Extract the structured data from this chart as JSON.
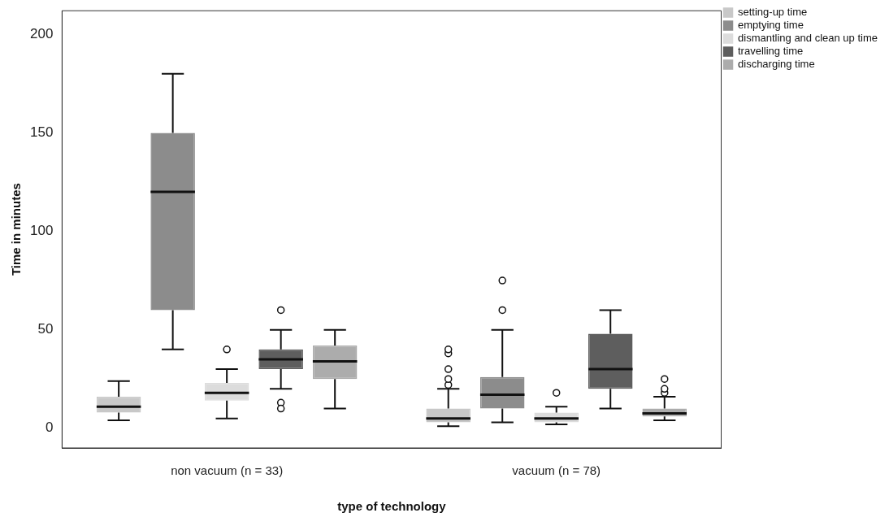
{
  "chart_data": {
    "type": "box",
    "xlabel": "type of technology",
    "ylabel": "Time in minutes",
    "categories": [
      "non vacuum (n = 33)",
      "vacuum (n = 78)"
    ],
    "ylim": [
      -10,
      212
    ],
    "yticks": [
      0,
      50,
      100,
      150,
      200
    ],
    "legend": "top right",
    "series": [
      {
        "name": "setting-up time",
        "color": "#c8c8c8",
        "boxes": [
          {
            "low": 4,
            "q1": 8,
            "median": 11,
            "q3": 16,
            "high": 24
          },
          {
            "low": 1,
            "q1": 3,
            "median": 5,
            "q3": 10,
            "high": 20,
            "outliers": [
              22,
              25,
              30,
              38,
              40
            ]
          }
        ]
      },
      {
        "name": "emptying time",
        "color": "#8c8c8c",
        "boxes": [
          {
            "low": 40,
            "q1": 60,
            "median": 120,
            "q3": 150,
            "high": 180
          },
          {
            "low": 3,
            "q1": 10,
            "median": 17,
            "q3": 26,
            "high": 50,
            "outliers": [
              60,
              75
            ]
          }
        ]
      },
      {
        "name": "dismantling and clean up time",
        "color": "#dcdcdc",
        "boxes": [
          {
            "low": 5,
            "q1": 14,
            "median": 18,
            "q3": 23,
            "high": 30,
            "outliers": [
              40
            ]
          },
          {
            "low": 2,
            "q1": 3,
            "median": 5,
            "q3": 8,
            "high": 11,
            "outliers": [
              18
            ]
          }
        ]
      },
      {
        "name": "travelling time",
        "color": "#5e5e5e",
        "boxes": [
          {
            "low": 20,
            "q1": 30,
            "median": 35,
            "q3": 40,
            "high": 50,
            "outliers": [
              60,
              13,
              10
            ]
          },
          {
            "low": 10,
            "q1": 20,
            "median": 30,
            "q3": 48,
            "high": 60
          }
        ]
      },
      {
        "name": "discharging time",
        "color": "#acacac",
        "boxes": [
          {
            "low": 10,
            "q1": 25,
            "median": 34,
            "q3": 42,
            "high": 50
          },
          {
            "low": 4,
            "q1": 6,
            "median": 7.5,
            "q3": 10,
            "high": 16,
            "outliers": [
              18,
              20,
              25
            ]
          }
        ]
      }
    ]
  }
}
